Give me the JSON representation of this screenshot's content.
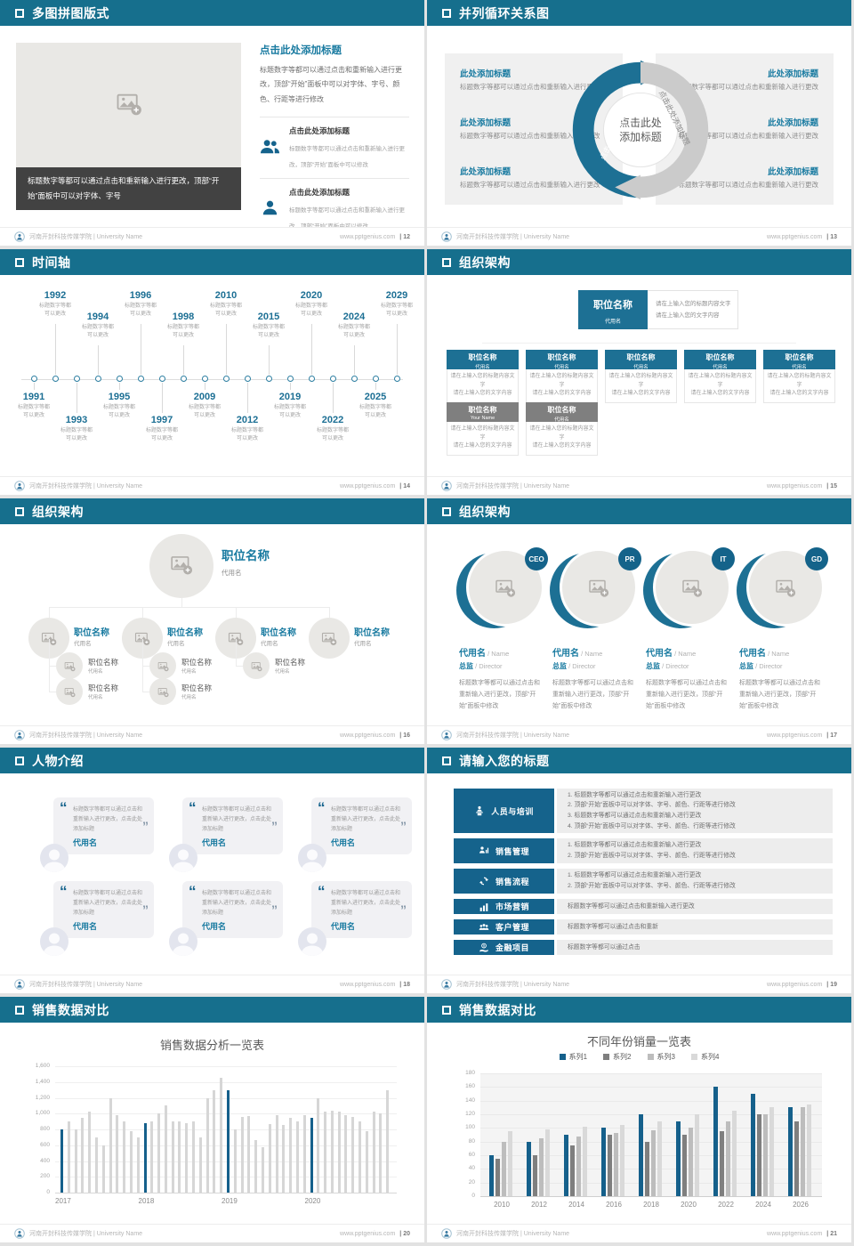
{
  "common": {
    "footer_brand": "河南开封科技传媒学院 | University Name",
    "footer_site": "www.pptgenius.com",
    "page_separator": "|"
  },
  "colors": {
    "header_teal": "#166f8d",
    "accent_blue": "#187aa0",
    "box_blue": "#15638c",
    "arc_blue": "#1d7094",
    "arc_gray": "#cbcbcb",
    "bar_gray": "#d6d6d6",
    "chart_blue": "#15608b"
  },
  "slides": [
    {
      "title": "多图拼图版式",
      "page": "12",
      "heading": "点击此处添加标题",
      "paragraph": "标题数字等都可以通过点击和重新输入进行更改，顶部“开始”面板中可以对字体、字号、颜色、行距等进行修改",
      "caption": "标题数字等都可以通过点击和重新输入进行更改，顶部“开始”面板中可以对字体、字号",
      "items": [
        {
          "icon": "people-icon",
          "title": "点击此处添加标题",
          "text": "标题数字等都可以通过点击和重新输入进行更改，顶部“开始”面板中可以修改"
        },
        {
          "icon": "person-icon",
          "title": "点击此处添加标题",
          "text": "标题数字等都可以通过点击和重新输入进行更改，顶部“开始”面板中可以修改"
        }
      ]
    },
    {
      "title": "并列循环关系图",
      "page": "13",
      "center_1": "点击此处",
      "center_2": "添加标题",
      "arc_label_left": "点击此处添加标题",
      "arc_label_right": "点击此处添加标题",
      "left": [
        {
          "t": "此处添加标题",
          "d": "标题数字等都可以通过点击和重新输入进行更改"
        },
        {
          "t": "此处添加标题",
          "d": "标题数字等都可以通过点击和重新输入进行更改"
        },
        {
          "t": "此处添加标题",
          "d": "标题数字等都可以通过点击和重新输入进行更改"
        }
      ],
      "right": [
        {
          "t": "此处添加标题",
          "d": "标题数字等都可以通过点击和重新输入进行更改"
        },
        {
          "t": "此处添加标题",
          "d": "标题数字等都可以通过点击和重新输入进行更改"
        },
        {
          "t": "此处添加标题",
          "d": "标题数字等都可以通过点击和重新输入进行更改"
        }
      ]
    },
    {
      "title": "时间轴",
      "page": "14",
      "note_1": "标题数字等都",
      "note_2": "可以更改",
      "below_years": [
        "1991",
        "1993",
        "1995",
        "1997",
        "2009",
        "2012",
        "2019",
        "2022",
        "2025"
      ],
      "above_years": [
        "1992",
        "1994",
        "1996",
        "1998",
        "2010",
        "2015",
        "2020",
        "2024",
        "2029"
      ]
    },
    {
      "title": "组织架构",
      "page": "15",
      "root": {
        "title": "职位名称",
        "name": "代用名"
      },
      "root_note_1": "请在上输入您的标题内容文字",
      "root_note_2": "请在上输入您的文字内容",
      "box_title": "职位名称",
      "box_name": "代用名",
      "row2_names": [
        "Your Name",
        "代用名"
      ],
      "note_line_1": "请在上输入您的标题内容文字",
      "note_line_2": "请在上输入您的文字内容"
    },
    {
      "title": "组织架构",
      "page": "16",
      "root": {
        "title": "职位名称",
        "name": "代用名"
      },
      "branch_title": "职位名称",
      "branch_name": "代用名",
      "sub_title": "职位名称",
      "sub_name": "代用名",
      "branch_children": [
        2,
        2,
        1,
        0
      ]
    },
    {
      "title": "组织架构",
      "page": "17",
      "members": [
        {
          "badge": "CEO",
          "name_cn": "代用名",
          "name_en": "/ Name",
          "role_cn": "总监",
          "role_en": "/ Director",
          "text": "标题数字等都可以通过点击和重新输入进行更改，顶部“开始”面板中修改"
        },
        {
          "badge": "PR",
          "name_cn": "代用名",
          "name_en": "/ Name",
          "role_cn": "总监",
          "role_en": "/ Director",
          "text": "标题数字等都可以通过点击和重新输入进行更改，顶部“开始”面板中修改"
        },
        {
          "badge": "IT",
          "name_cn": "代用名",
          "name_en": "/ Name",
          "role_cn": "总监",
          "role_en": "/ Director",
          "text": "标题数字等都可以通过点击和重新输入进行更改，顶部“开始”面板中修改"
        },
        {
          "badge": "GD",
          "name_cn": "代用名",
          "name_en": "/ Name",
          "role_cn": "总监",
          "role_en": "/ Director",
          "text": "标题数字等都可以通过点击和重新输入进行更改，顶部“开始”面板中修改"
        }
      ]
    },
    {
      "title": "人物介绍",
      "page": "18",
      "card_text": "标题数字等都可以通过点击和重新输入进行更改，点击此处添加标题",
      "card_name": "代用名",
      "card_count": 6
    },
    {
      "title": "请输入您的标题",
      "page": "19",
      "rows": [
        {
          "icon": "training-icon",
          "label": "人员与培训",
          "lines": [
            "1.  标题数字等都可以通过点击和重新输入进行更改",
            "2.  顶部“开始”面板中可以对字体、字号、颜色、行距等进行修改",
            "3.  标题数字等都可以通过点击和重新输入进行更改",
            "4.  顶部“开始”面板中可以对字体、字号、颜色、行距等进行修改"
          ]
        },
        {
          "icon": "sales-management-icon",
          "label": "销售管理",
          "lines": [
            "1.  标题数字等都可以通过点击和重新输入进行更改",
            "2.  顶部“开始”面板中可以对字体、字号、颜色、行距等进行修改"
          ]
        },
        {
          "icon": "sales-process-icon",
          "label": "销售流程",
          "lines": [
            "1.  标题数字等都可以通过点击和重新输入进行更改",
            "2.  顶部“开始”面板中可以对字体、字号、颜色、行距等进行修改"
          ]
        },
        {
          "icon": "marketing-icon",
          "label": "市场营销",
          "lines": [
            "标题数字等都可以通过点击和重新输入进行更改"
          ]
        },
        {
          "icon": "customer-icon",
          "label": "客户管理",
          "lines": [
            "标题数字等都可以通过点击和重新"
          ]
        },
        {
          "icon": "finance-icon",
          "label": "金融项目",
          "lines": [
            "标题数字等都可以通过点击"
          ]
        }
      ]
    },
    {
      "title": "销售数据对比",
      "page": "20",
      "chart_ref": 0
    },
    {
      "title": "销售数据对比",
      "page": "21",
      "chart_ref": 1
    }
  ],
  "chart_data": [
    {
      "type": "bar",
      "title": "销售数据分析一览表",
      "xlabel": "",
      "ylabel": "",
      "ylim": [
        0,
        1600
      ],
      "ytick_step": 200,
      "ytick_labels": [
        "0",
        "200",
        "400",
        "600",
        "800",
        "1,000",
        "1,200",
        "1,400",
        "1,600"
      ],
      "x_groups": [
        "2017",
        "2018",
        "2019",
        "2020"
      ],
      "group_start_indices": [
        0,
        12,
        24,
        36
      ],
      "bar_color": "#d6d6d6",
      "highlight_color": "#15608b",
      "highlight_indices": [
        0,
        12,
        24,
        36
      ],
      "grid": true,
      "values": [
        800,
        900,
        800,
        950,
        1030,
        700,
        600,
        1200,
        980,
        900,
        780,
        700,
        880,
        900,
        1000,
        1100,
        900,
        900,
        880,
        900,
        700,
        1200,
        1300,
        1450,
        1300,
        800,
        960,
        970,
        660,
        580,
        870,
        980,
        860,
        950,
        900,
        980,
        950,
        1200,
        1020,
        1040,
        1020,
        980,
        960,
        900,
        780,
        1020,
        1000,
        1300
      ]
    },
    {
      "type": "bar",
      "title": "不同年份销量一览表",
      "xlabel": "",
      "ylabel": "",
      "ylim": [
        0,
        180
      ],
      "ytick_step": 20,
      "ytick_labels": [
        "0",
        "20",
        "40",
        "60",
        "80",
        "100",
        "120",
        "140",
        "160",
        "180"
      ],
      "categories": [
        "2010",
        "2012",
        "2014",
        "2016",
        "2018",
        "2020",
        "2022",
        "2024",
        "2026"
      ],
      "legend_position": "top",
      "grid": true,
      "series": [
        {
          "name": "系列1",
          "color": "#15608b",
          "values": [
            60,
            80,
            90,
            100,
            120,
            110,
            160,
            150,
            130
          ]
        },
        {
          "name": "系列2",
          "color": "#7f7f7f",
          "values": [
            55,
            60,
            75,
            90,
            80,
            90,
            95,
            120,
            110
          ]
        },
        {
          "name": "系列3",
          "color": "#bdbdbd",
          "values": [
            80,
            85,
            88,
            92,
            97,
            100,
            110,
            120,
            130
          ]
        },
        {
          "name": "系列4",
          "color": "#d9d9d9",
          "values": [
            95,
            98,
            102,
            105,
            110,
            120,
            125,
            130,
            135
          ]
        }
      ]
    }
  ]
}
